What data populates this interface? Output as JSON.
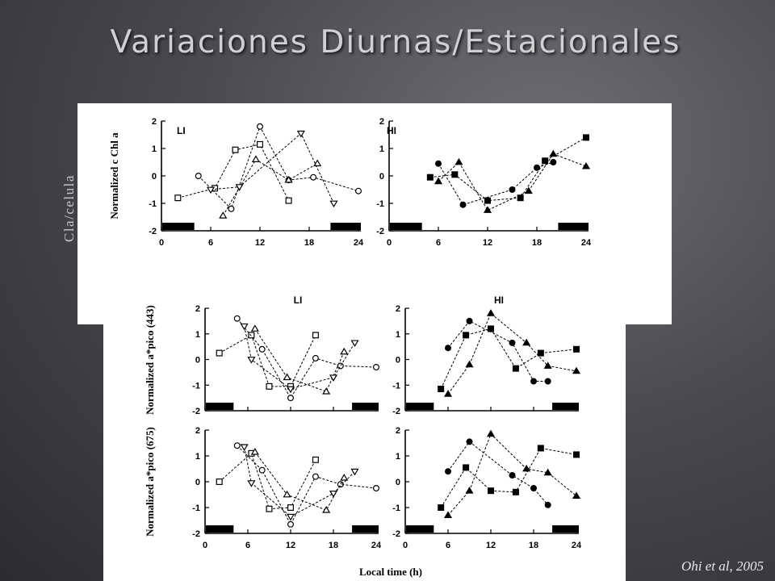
{
  "slide": {
    "title": "Variaciones Diurnas/Estacionales",
    "side_label": "Cla/celula",
    "citation": "Ohi et al, 2005"
  },
  "chart_data": [
    {
      "type": "line",
      "panel": "LI",
      "ylabel": "Normalized c Chl a",
      "ylim": [
        -2,
        2
      ],
      "xlim": [
        0,
        24
      ],
      "xticks": [
        0,
        6,
        12,
        18,
        24
      ],
      "yticks": [
        -2,
        -1,
        0,
        1,
        2
      ],
      "dark_periods": [
        [
          0,
          4
        ],
        [
          20.5,
          24.5
        ]
      ],
      "series": [
        {
          "marker": "open-square",
          "x": [
            2,
            6.5,
            9,
            12,
            15.5
          ],
          "y": [
            -0.8,
            -0.45,
            0.95,
            1.15,
            -0.9
          ]
        },
        {
          "marker": "open-circle",
          "x": [
            4.5,
            8.5,
            12,
            15.5,
            18.5,
            24
          ],
          "y": [
            0.0,
            -1.2,
            1.8,
            -0.15,
            -0.05,
            -0.55
          ]
        },
        {
          "marker": "open-triangle-up",
          "x": [
            7.5,
            11.5,
            15.5,
            19
          ],
          "y": [
            -1.45,
            0.6,
            -0.15,
            0.45
          ]
        },
        {
          "marker": "open-triangle-down",
          "x": [
            6,
            9.5,
            17,
            21
          ],
          "y": [
            -0.5,
            -0.4,
            1.55,
            -1.0
          ]
        }
      ]
    },
    {
      "type": "line",
      "panel": "HI",
      "ylim": [
        -2,
        2
      ],
      "xlim": [
        0,
        24
      ],
      "xticks": [
        0,
        6,
        12,
        18,
        24
      ],
      "yticks": [
        -2,
        -1,
        0,
        1,
        2
      ],
      "dark_periods": [
        [
          0,
          4
        ],
        [
          20.5,
          24.5
        ]
      ],
      "series": [
        {
          "marker": "filled-square",
          "x": [
            5,
            8,
            12,
            16,
            19,
            24
          ],
          "y": [
            -0.05,
            0.05,
            -0.9,
            -0.8,
            0.55,
            1.4
          ]
        },
        {
          "marker": "filled-circle",
          "x": [
            6,
            9,
            15,
            18,
            20
          ],
          "y": [
            0.45,
            -1.05,
            -0.5,
            0.3,
            0.5
          ]
        },
        {
          "marker": "filled-triangle",
          "x": [
            6,
            8.5,
            12,
            17,
            20,
            24
          ],
          "y": [
            -0.2,
            0.5,
            -1.25,
            -0.55,
            0.8,
            0.35
          ]
        }
      ]
    },
    {
      "type": "line",
      "panel": "LI",
      "panel_label": "LI",
      "ylabel": "Normalized a*pico (443)",
      "ylim": [
        -2,
        2
      ],
      "xlim": [
        0,
        24
      ],
      "xticks": [
        0,
        6,
        12,
        18,
        24
      ],
      "yticks": [
        -2,
        -1,
        0,
        1,
        2
      ],
      "dark_periods": [
        [
          0,
          4
        ],
        [
          20.5,
          24.5
        ]
      ],
      "series": [
        {
          "marker": "open-square",
          "x": [
            2,
            6.5,
            9,
            12,
            15.5
          ],
          "y": [
            0.25,
            0.95,
            -1.05,
            -1.05,
            0.95
          ]
        },
        {
          "marker": "open-circle",
          "x": [
            4.5,
            8,
            12,
            15.5,
            19,
            24
          ],
          "y": [
            1.6,
            0.4,
            -1.5,
            0.05,
            -0.25,
            -0.3
          ]
        },
        {
          "marker": "open-triangle-up",
          "x": [
            7,
            11.5,
            17,
            19.5
          ],
          "y": [
            1.2,
            -0.7,
            -1.25,
            0.3
          ]
        },
        {
          "marker": "open-triangle-down",
          "x": [
            5.5,
            6.5,
            12,
            18,
            21
          ],
          "y": [
            1.3,
            0.0,
            -1.15,
            -0.7,
            0.65
          ]
        }
      ]
    },
    {
      "type": "line",
      "panel": "HI",
      "panel_label": "HI",
      "ylim": [
        -2,
        2
      ],
      "xlim": [
        0,
        24
      ],
      "xticks": [
        0,
        6,
        12,
        18,
        24
      ],
      "yticks": [
        -2,
        -1,
        0,
        1,
        2
      ],
      "dark_periods": [
        [
          0,
          4
        ],
        [
          20.5,
          24.5
        ]
      ],
      "series": [
        {
          "marker": "filled-square",
          "x": [
            5,
            8.5,
            12,
            15.5,
            19,
            24
          ],
          "y": [
            -1.15,
            0.95,
            1.2,
            -0.35,
            0.25,
            0.4
          ]
        },
        {
          "marker": "filled-circle",
          "x": [
            6,
            9,
            15,
            18,
            20
          ],
          "y": [
            0.45,
            1.5,
            0.65,
            -0.85,
            -0.85
          ]
        },
        {
          "marker": "filled-triangle",
          "x": [
            6,
            9,
            12,
            17,
            20,
            24
          ],
          "y": [
            -1.35,
            -0.2,
            1.8,
            0.65,
            -0.25,
            -0.45
          ]
        }
      ]
    },
    {
      "type": "line",
      "panel": "LI",
      "ylabel": "Normalized a*pico (675)",
      "xlabel": "Local time (h)",
      "ylim": [
        -2,
        2
      ],
      "xlim": [
        0,
        24
      ],
      "xticks": [
        0,
        6,
        12,
        18,
        24
      ],
      "yticks": [
        -2,
        -1,
        0,
        1,
        2
      ],
      "dark_periods": [
        [
          0,
          4
        ],
        [
          20.5,
          24.5
        ]
      ],
      "series": [
        {
          "marker": "open-square",
          "x": [
            2,
            6.5,
            9,
            12,
            15.5
          ],
          "y": [
            0.0,
            1.1,
            -1.05,
            -1.0,
            0.85
          ]
        },
        {
          "marker": "open-circle",
          "x": [
            4.5,
            8,
            12,
            15.5,
            19,
            24
          ],
          "y": [
            1.4,
            0.45,
            -1.65,
            0.2,
            -0.1,
            -0.25
          ]
        },
        {
          "marker": "open-triangle-up",
          "x": [
            7,
            11.5,
            17,
            19.5
          ],
          "y": [
            1.15,
            -0.5,
            -1.1,
            0.15
          ]
        },
        {
          "marker": "open-triangle-down",
          "x": [
            5.5,
            6.5,
            12,
            18,
            21
          ],
          "y": [
            1.35,
            -0.05,
            -1.35,
            -0.45,
            0.4
          ]
        }
      ]
    },
    {
      "type": "line",
      "panel": "HI",
      "xlabel": "Local time (h)",
      "ylim": [
        -2,
        2
      ],
      "xlim": [
        0,
        24
      ],
      "xticks": [
        0,
        6,
        12,
        18,
        24
      ],
      "yticks": [
        -2,
        -1,
        0,
        1,
        2
      ],
      "dark_periods": [
        [
          0,
          4
        ],
        [
          20.5,
          24.5
        ]
      ],
      "series": [
        {
          "marker": "filled-square",
          "x": [
            5,
            8.5,
            12,
            15.5,
            19,
            24
          ],
          "y": [
            -1.0,
            0.55,
            -0.35,
            -0.4,
            1.3,
            1.05
          ]
        },
        {
          "marker": "filled-circle",
          "x": [
            6,
            9,
            15,
            18,
            20
          ],
          "y": [
            0.4,
            1.55,
            0.25,
            -0.25,
            -0.9
          ]
        },
        {
          "marker": "filled-triangle",
          "x": [
            6,
            9,
            12,
            17,
            20,
            24
          ],
          "y": [
            -1.3,
            -0.35,
            1.85,
            0.5,
            0.35,
            -0.55
          ]
        }
      ]
    }
  ]
}
